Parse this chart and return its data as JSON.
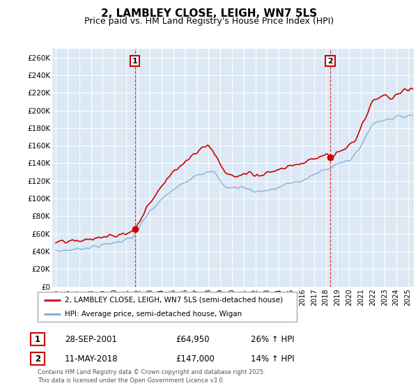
{
  "title": "2, LAMBLEY CLOSE, LEIGH, WN7 5LS",
  "subtitle": "Price paid vs. HM Land Registry's House Price Index (HPI)",
  "title_fontsize": 11,
  "subtitle_fontsize": 9,
  "background_color": "#ffffff",
  "grid_color": "#cccccc",
  "plot_bg": "#dce9f5",
  "red_color": "#cc0000",
  "blue_color": "#7aadd4",
  "ylim": [
    0,
    270000
  ],
  "yticks": [
    0,
    20000,
    40000,
    60000,
    80000,
    100000,
    120000,
    140000,
    160000,
    180000,
    200000,
    220000,
    240000,
    260000
  ],
  "ytick_labels": [
    "£0",
    "£20K",
    "£40K",
    "£60K",
    "£80K",
    "£100K",
    "£120K",
    "£140K",
    "£160K",
    "£180K",
    "£200K",
    "£220K",
    "£240K",
    "£260K"
  ],
  "xlim_start": 1994.7,
  "xlim_end": 2025.5,
  "purchase1_date": 2001.75,
  "purchase1_price": 64950,
  "purchase2_date": 2018.37,
  "purchase2_price": 147000,
  "legend_line1": "2, LAMBLEY CLOSE, LEIGH, WN7 5LS (semi-detached house)",
  "legend_line2": "HPI: Average price, semi-detached house, Wigan",
  "table_row1": [
    "1",
    "28-SEP-2001",
    "£64,950",
    "26% ↑ HPI"
  ],
  "table_row2": [
    "2",
    "11-MAY-2018",
    "£147,000",
    "14% ↑ HPI"
  ],
  "footer": "Contains HM Land Registry data © Crown copyright and database right 2025.\nThis data is licensed under the Open Government Licence v3.0."
}
